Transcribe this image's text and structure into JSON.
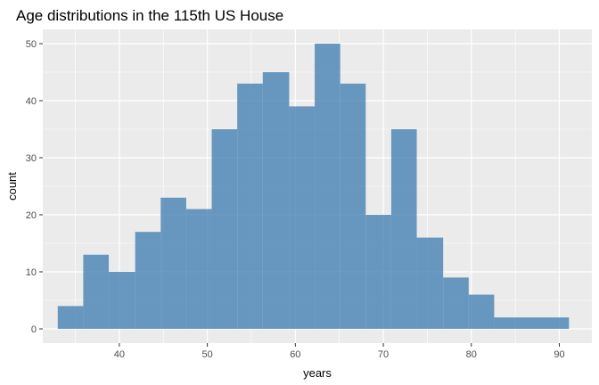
{
  "chart_data": {
    "type": "bar",
    "title": "Age distributions in the 115th US House",
    "xlabel": "years",
    "ylabel": "count",
    "x_ticks": [
      40,
      50,
      60,
      70,
      80,
      90
    ],
    "y_ticks": [
      0,
      10,
      20,
      30,
      40,
      50
    ],
    "xlim": [
      31.3,
      93.7
    ],
    "ylim": [
      -2.5,
      52.5
    ],
    "grid": true,
    "legend": "none",
    "bar_color": "#4682b4",
    "panel_color": "#ebebeb",
    "bins": [
      {
        "x0": 33.0,
        "x1": 35.9,
        "count": 4
      },
      {
        "x0": 35.9,
        "x1": 38.8,
        "count": 13
      },
      {
        "x0": 38.8,
        "x1": 41.8,
        "count": 10
      },
      {
        "x0": 41.8,
        "x1": 44.7,
        "count": 17
      },
      {
        "x0": 44.7,
        "x1": 47.6,
        "count": 23
      },
      {
        "x0": 47.6,
        "x1": 50.5,
        "count": 21
      },
      {
        "x0": 50.5,
        "x1": 53.4,
        "count": 35
      },
      {
        "x0": 53.4,
        "x1": 56.3,
        "count": 43
      },
      {
        "x0": 56.3,
        "x1": 59.3,
        "count": 45
      },
      {
        "x0": 59.3,
        "x1": 62.2,
        "count": 39
      },
      {
        "x0": 62.2,
        "x1": 65.1,
        "count": 50
      },
      {
        "x0": 65.1,
        "x1": 68.0,
        "count": 43
      },
      {
        "x0": 68.0,
        "x1": 70.9,
        "count": 20
      },
      {
        "x0": 70.9,
        "x1": 73.8,
        "count": 35
      },
      {
        "x0": 73.8,
        "x1": 76.8,
        "count": 16
      },
      {
        "x0": 76.8,
        "x1": 79.7,
        "count": 9
      },
      {
        "x0": 79.7,
        "x1": 82.6,
        "count": 6
      },
      {
        "x0": 82.6,
        "x1": 91.1,
        "count": 2
      }
    ]
  }
}
